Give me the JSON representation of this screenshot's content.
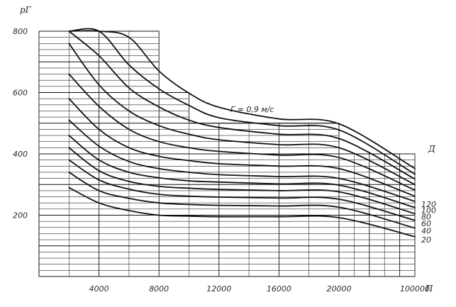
{
  "chart_data": {
    "type": "line",
    "title": "",
    "ylabel": "pГ",
    "xlabel": "П",
    "series_label_title": "Д",
    "annotation": "Г = 0,9 м/с",
    "ylim": [
      0,
      800
    ],
    "y_ticks": [
      "200",
      "400",
      "600",
      "800"
    ],
    "x_tick_labels": [
      "4000",
      "8000",
      "12000",
      "16000",
      "20000",
      "100000"
    ],
    "x_axis_note": "piecewise category axis: 0-20000 in steps of 4000, then a compressed segment ending at 100000",
    "x": [
      2000,
      4000,
      6000,
      8000,
      10000,
      12000,
      16000,
      20000,
      100000
    ],
    "series": [
      {
        "name": "20",
        "values": [
          290,
          240,
          215,
          200,
          197,
          195,
          195,
          192,
          130
        ]
      },
      {
        "name": "40",
        "values": [
          340,
          280,
          255,
          240,
          235,
          232,
          230,
          226,
          158
        ]
      },
      {
        "name": "60",
        "values": [
          380,
          315,
          285,
          268,
          262,
          259,
          256,
          252,
          183
        ]
      },
      {
        "name": "80",
        "values": [
          420,
          345,
          310,
          294,
          288,
          284,
          280,
          276,
          205
        ]
      },
      {
        "name": "100",
        "values": [
          460,
          380,
          340,
          322,
          312,
          308,
          302,
          298,
          225
        ]
      },
      {
        "name": "120",
        "values": [
          510,
          425,
          375,
          352,
          340,
          332,
          326,
          320,
          245
        ]
      },
      {
        "name": "",
        "values": [
          580,
          480,
          420,
          392,
          378,
          368,
          360,
          352,
          262
        ]
      },
      {
        "name": "",
        "values": [
          660,
          555,
          480,
          440,
          420,
          408,
          396,
          388,
          282
        ]
      },
      {
        "name": "",
        "values": [
          760,
          625,
          540,
          492,
          464,
          446,
          430,
          420,
          300
        ]
      },
      {
        "name": "",
        "values": [
          800,
          720,
          615,
          553,
          510,
          486,
          464,
          450,
          318
        ]
      },
      {
        "name": "",
        "values": [
          800,
          800,
          690,
          612,
          558,
          518,
          492,
          478,
          334
        ]
      },
      {
        "name": "",
        "values": [
          800,
          800,
          780,
          670,
          598,
          552,
          514,
          498,
          352
        ]
      }
    ],
    "step_boundary": [
      {
        "x_from": 0,
        "x_to": 8000,
        "y": 800
      },
      {
        "x_from": 8000,
        "x_to": 10000,
        "y": 600
      },
      {
        "x_from": 10000,
        "x_to": 20000,
        "y": 500
      },
      {
        "x_from": 20000,
        "x_to": 100000,
        "y": 400
      }
    ],
    "grid": true,
    "legend": "curve labels at right end"
  }
}
